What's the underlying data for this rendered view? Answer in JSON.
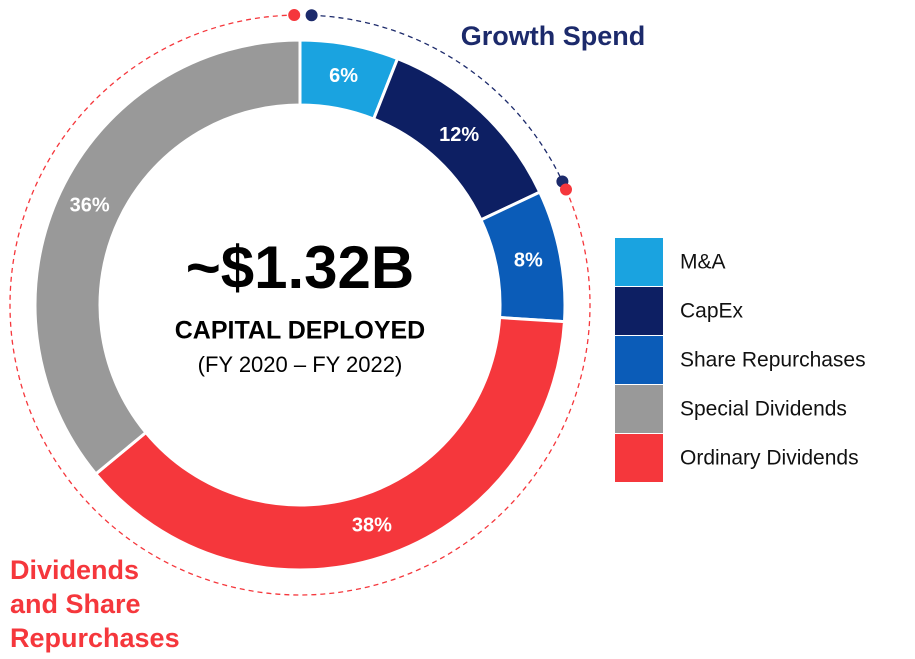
{
  "chart_data": {
    "type": "donut",
    "center_title": "~$1.32B",
    "center_subtitle": "CAPITAL DEPLOYED",
    "center_note": "(FY 2020 – FY 2022)",
    "categories": [
      "M&A",
      "CapEx",
      "Share Repurchases",
      "Ordinary Dividends",
      "Special Dividends"
    ],
    "values": [
      6,
      12,
      8,
      38,
      36
    ],
    "value_labels": [
      "6%",
      "12%",
      "8%",
      "38%",
      "36%"
    ],
    "colors": [
      "#1aa3e0",
      "#0d1f63",
      "#0b5cb8",
      "#f5373c",
      "#999999"
    ],
    "legend_order": [
      0,
      1,
      2,
      4,
      3
    ],
    "annotations": [
      {
        "text": [
          "Growth Spend"
        ],
        "color": "#1c2a6b",
        "from": 0,
        "to": 2
      },
      {
        "text": [
          "Dividends",
          "and Share",
          "Repurchases"
        ],
        "color": "#f5373c",
        "from": 2,
        "to": 5
      }
    ]
  }
}
